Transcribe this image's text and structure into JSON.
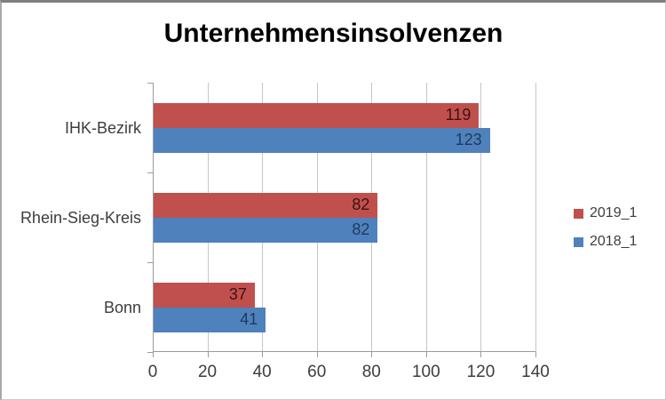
{
  "title": "Unternehmensinsolvenzen",
  "chart_data": {
    "type": "bar",
    "orientation": "horizontal",
    "title": "Unternehmensinsolvenzen",
    "categories": [
      "IHK-Bezirk",
      "Rhein-Sieg-Kreis",
      "Bonn"
    ],
    "series": [
      {
        "name": "2019_1",
        "color": "#C0504D",
        "label_color": "#3a1311",
        "values": [
          119,
          82,
          37
        ]
      },
      {
        "name": "2018_1",
        "color": "#4F81BD",
        "label_color": "#1d3a5f",
        "values": [
          123,
          82,
          41
        ]
      }
    ],
    "xlabel": "",
    "ylabel": "",
    "xlim": [
      0,
      140
    ],
    "xticks": [
      0,
      20,
      40,
      60,
      80,
      100,
      120,
      140
    ],
    "grid": true,
    "legend_position": "right",
    "data_labels": "inside-end"
  },
  "legend": {
    "items": [
      {
        "label": "2019_1",
        "color": "#C0504D"
      },
      {
        "label": "2018_1",
        "color": "#4F81BD"
      }
    ]
  }
}
